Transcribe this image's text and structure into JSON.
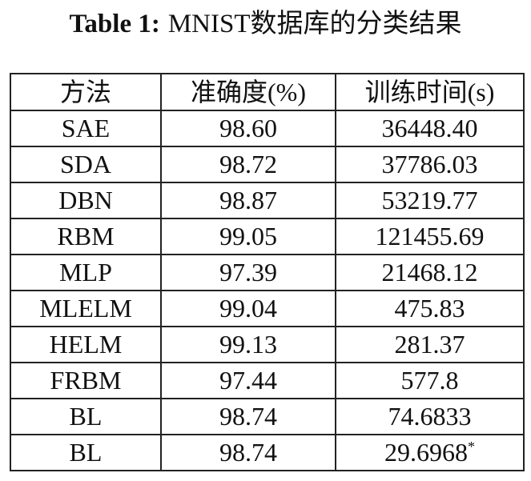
{
  "caption": {
    "label": "Table 1:",
    "text": "MNIST数据库的分类结果"
  },
  "table": {
    "headers": [
      "方法",
      "准确度(%)",
      "训练时间(s)"
    ],
    "rows": [
      {
        "method": "SAE",
        "accuracy": "98.60",
        "time": "36448.40",
        "note": ""
      },
      {
        "method": "SDA",
        "accuracy": "98.72",
        "time": "37786.03",
        "note": ""
      },
      {
        "method": "DBN",
        "accuracy": "98.87",
        "time": "53219.77",
        "note": ""
      },
      {
        "method": "RBM",
        "accuracy": "99.05",
        "time": "121455.69",
        "note": ""
      },
      {
        "method": "MLP",
        "accuracy": "97.39",
        "time": "21468.12",
        "note": ""
      },
      {
        "method": "MLELM",
        "accuracy": "99.04",
        "time": "475.83",
        "note": ""
      },
      {
        "method": "HELM",
        "accuracy": "99.13",
        "time": "281.37",
        "note": ""
      },
      {
        "method": "FRBM",
        "accuracy": "97.44",
        "time": "577.8",
        "note": ""
      },
      {
        "method": "BL",
        "accuracy": "98.74",
        "time": "74.6833",
        "note": ""
      },
      {
        "method": "BL",
        "accuracy": "98.74",
        "time": "29.6968",
        "note": "*"
      }
    ]
  }
}
